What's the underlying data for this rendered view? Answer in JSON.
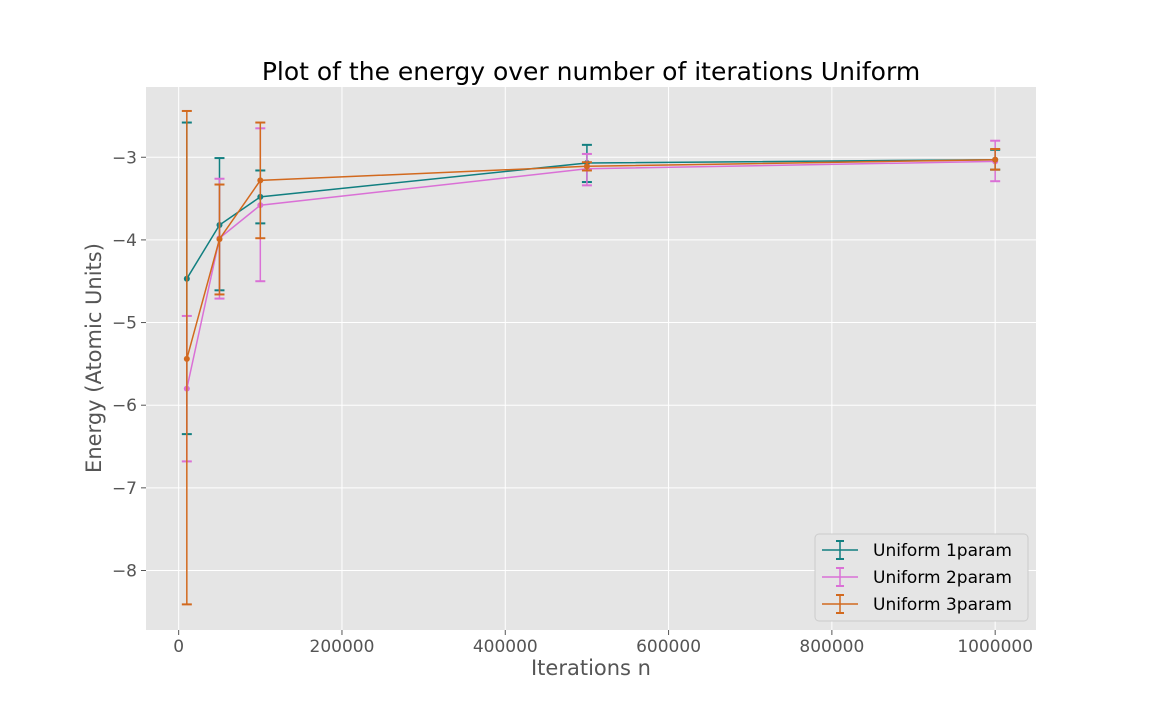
{
  "chart_data": {
    "type": "line",
    "title": "Plot of the energy over number of iterations Uniform",
    "xlabel": "Iterations n",
    "ylabel": "Energy (Atomic Units)",
    "xlim": [
      -40000,
      1050000
    ],
    "ylim": [
      -8.72,
      -2.15
    ],
    "xticks": [
      0,
      200000,
      400000,
      600000,
      800000,
      1000000
    ],
    "xtick_labels": [
      "0",
      "200000",
      "400000",
      "600000",
      "800000",
      "1000000"
    ],
    "yticks": [
      -8,
      -7,
      -6,
      -5,
      -4,
      -3
    ],
    "ytick_labels": [
      "−8",
      "−7",
      "−6",
      "−5",
      "−4",
      "−3"
    ],
    "grid": true,
    "legend_position": "lower-right",
    "background": "#e5e5e5",
    "series": [
      {
        "name": "Uniform 1param",
        "color": "#117f80",
        "x": [
          10000,
          50000,
          100000,
          500000,
          1000000
        ],
        "y": [
          -4.47,
          -3.82,
          -3.48,
          -3.07,
          -3.03
        ],
        "err_low": [
          -6.35,
          -4.61,
          -3.8,
          -3.3,
          -3.15
        ],
        "err_high": [
          -2.58,
          -3.01,
          -3.16,
          -2.85,
          -2.91
        ]
      },
      {
        "name": "Uniform 2param",
        "color": "#da70d6",
        "x": [
          10000,
          50000,
          100000,
          500000,
          1000000
        ],
        "y": [
          -5.8,
          -3.98,
          -3.58,
          -3.14,
          -3.05
        ],
        "err_low": [
          -6.68,
          -4.71,
          -4.5,
          -3.34,
          -3.29
        ],
        "err_high": [
          -4.92,
          -3.26,
          -2.65,
          -2.96,
          -2.8
        ]
      },
      {
        "name": "Uniform 3param",
        "color": "#d2691e",
        "x": [
          10000,
          50000,
          100000,
          500000,
          1000000
        ],
        "y": [
          -5.44,
          -3.99,
          -3.28,
          -3.11,
          -3.03
        ],
        "err_low": [
          -8.41,
          -4.66,
          -3.98,
          -3.16,
          -3.15
        ],
        "err_high": [
          -2.44,
          -3.33,
          -2.58,
          -3.06,
          -2.9
        ]
      }
    ]
  }
}
